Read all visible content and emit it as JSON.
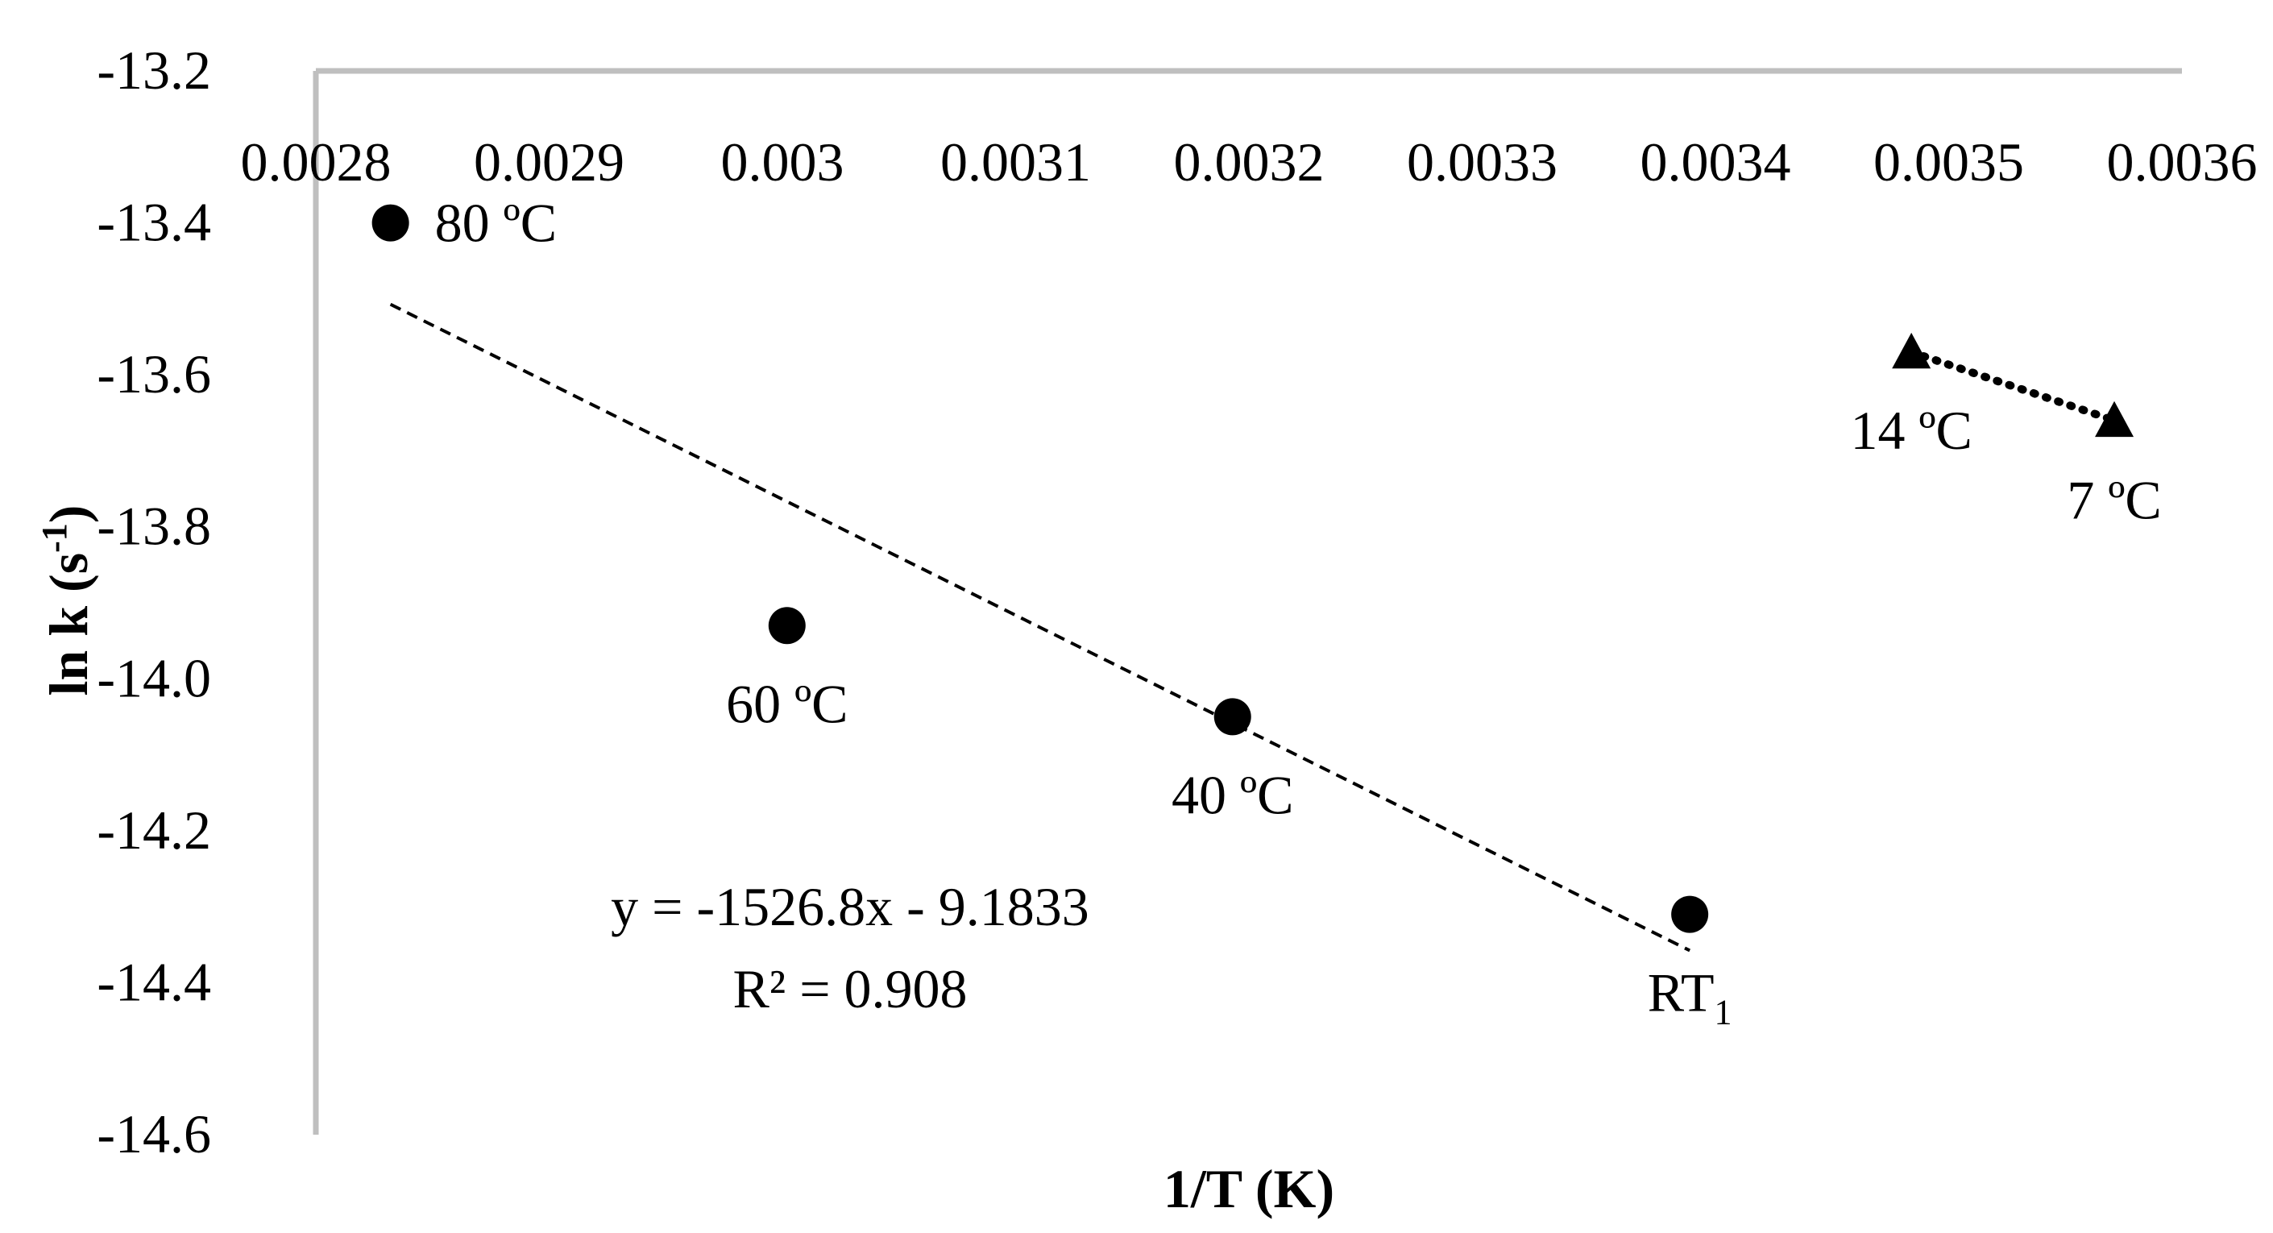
{
  "chart_data": {
    "type": "scatter",
    "xlabel": "1/T (K)",
    "ylabel_main": "ln k (s",
    "ylabel_sup": "-1",
    "ylabel_close": ")",
    "xlim": [
      0.0028,
      0.0036
    ],
    "ylim": [
      -14.6,
      -13.2
    ],
    "x_ticks": [
      0.0028,
      0.0029,
      0.003,
      0.0031,
      0.0032,
      0.0033,
      0.0034,
      0.0035,
      0.0036
    ],
    "x_tick_labels": [
      "0.0028",
      "0.0029",
      "0.003",
      "0.0031",
      "0.0032",
      "0.0033",
      "0.0034",
      "0.0035",
      "0.0036"
    ],
    "y_ticks": [
      -13.2,
      -13.4,
      -13.6,
      -13.8,
      -14.0,
      -14.2,
      -14.4,
      -14.6
    ],
    "y_tick_labels": [
      "-13.2",
      "-13.4",
      "-13.6",
      "-13.8",
      "-14.0",
      "-14.2",
      "-14.4",
      "-14.6"
    ],
    "x_axis_position": "top",
    "grid": false,
    "series": [
      {
        "marker": "circle",
        "points": [
          {
            "x": 0.002832,
            "y": -13.4,
            "label": "80 ºC"
          },
          {
            "x": 0.003002,
            "y": -13.93,
            "label": "60 ºC"
          },
          {
            "x": 0.003193,
            "y": -14.05,
            "label": "40 ºC"
          },
          {
            "x": 0.003389,
            "y": -14.31,
            "label": "RT",
            "label_sub": "1"
          }
        ],
        "trendline": {
          "style": "dashed",
          "slope": -1526.8,
          "intercept": -9.1833,
          "x_range": [
            0.002832,
            0.003389
          ],
          "equation": "y = -1526.8x - 9.1833",
          "r2": "R² = 0.908"
        }
      },
      {
        "marker": "triangle",
        "points": [
          {
            "x": 0.003484,
            "y": -13.57,
            "label": "14 ºC"
          },
          {
            "x": 0.003571,
            "y": -13.66,
            "label": "7 ºC"
          }
        ],
        "connector": "dotted"
      }
    ],
    "colors": {
      "marker": "#000000",
      "axis": "#bfbfbf",
      "text": "#000000"
    }
  }
}
